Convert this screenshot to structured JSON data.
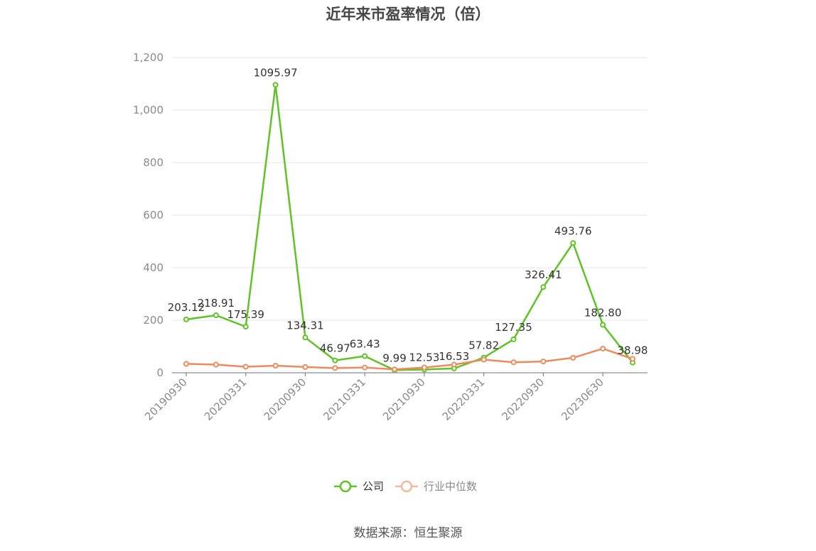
{
  "title": "近年来市盈率情况（倍）",
  "source": "数据来源：恒生聚源",
  "colors": {
    "company": "#5ec425",
    "industry": "#f08a5d",
    "grid": "#e3e6ee",
    "axis": "#8a8a8a"
  },
  "chart_data": {
    "type": "line",
    "title": "近年来市盈率情况（倍）",
    "x": [
      "20190930",
      "20191231",
      "20200331",
      "20200630",
      "20200930",
      "20201231",
      "20210331",
      "20210630",
      "20210930",
      "20211231",
      "20220331",
      "20220630",
      "20220930",
      "20221231",
      "20230630",
      "20230930"
    ],
    "x_tick_labels": [
      "20190930",
      "20200331",
      "20200930",
      "20210331",
      "20210930",
      "20220331",
      "20220930",
      "20230630"
    ],
    "ylim": [
      0,
      1200
    ],
    "y_ticks": [
      0,
      200,
      400,
      600,
      800,
      1000,
      1200
    ],
    "y_tick_labels": [
      "0",
      "200",
      "400",
      "600",
      "800",
      "1,000",
      "1,200"
    ],
    "grid": true,
    "legend_position": "bottom",
    "series": [
      {
        "name": "公司",
        "color": "#5ec425",
        "values": [
          203.12,
          218.91,
          175.39,
          1095.97,
          134.31,
          46.97,
          63.43,
          9.99,
          12.53,
          16.53,
          57.82,
          127.35,
          326.41,
          493.76,
          182.8,
          38.98
        ],
        "labels": [
          "203.12",
          "218.91",
          "175.39",
          "1095.97",
          "134.31",
          "46.97",
          "63.43",
          "9.99",
          "12.53",
          "16.53",
          "57.82",
          "127.35",
          "326.41",
          "493.76",
          "182.80",
          "38.98"
        ]
      },
      {
        "name": "行业中位数",
        "color": "#f08a5d",
        "values": [
          34,
          31,
          23,
          27,
          22,
          18,
          20,
          13,
          20,
          31,
          50,
          40,
          43,
          57,
          92,
          53
        ]
      }
    ]
  }
}
